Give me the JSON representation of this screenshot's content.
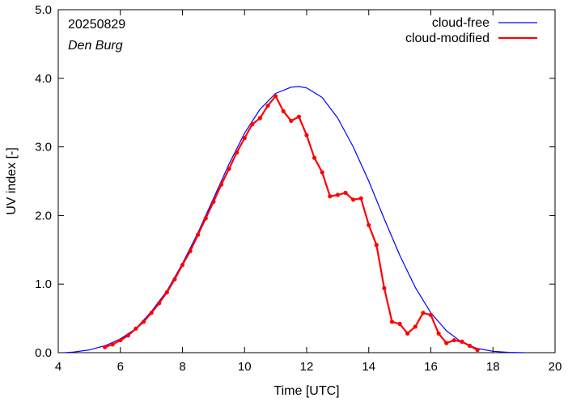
{
  "chart_data": {
    "type": "line",
    "title": "",
    "xlabel": "Time  [UTC]",
    "ylabel": "UV index  [-]",
    "xlim": [
      4,
      20
    ],
    "ylim": [
      0,
      5
    ],
    "xticks": [
      4,
      6,
      8,
      10,
      12,
      14,
      16,
      18,
      20
    ],
    "yticks": [
      0.0,
      1.0,
      2.0,
      3.0,
      4.0,
      5.0
    ],
    "xtick_labels": [
      "4",
      "6",
      "8",
      "10",
      "12",
      "14",
      "16",
      "18",
      "20"
    ],
    "ytick_labels": [
      "0.0",
      "1.0",
      "2.0",
      "3.0",
      "4.0",
      "5.0"
    ],
    "grid": false,
    "legend_position": "top-right",
    "annotations": {
      "date": "20250829",
      "station": "Den Burg"
    },
    "series": [
      {
        "name": "cloud-free",
        "color": "#0000ff",
        "style": "line",
        "x": [
          4.2,
          4.5,
          5.0,
          5.5,
          6.0,
          6.5,
          7.0,
          7.5,
          8.0,
          8.5,
          9.0,
          9.5,
          10.0,
          10.5,
          11.0,
          11.5,
          11.75,
          12.0,
          12.5,
          13.0,
          13.5,
          14.0,
          14.5,
          15.0,
          15.5,
          16.0,
          16.5,
          17.0,
          17.5,
          18.0,
          18.5,
          19.0
        ],
        "y": [
          0.0,
          0.01,
          0.04,
          0.1,
          0.2,
          0.35,
          0.6,
          0.9,
          1.3,
          1.75,
          2.25,
          2.75,
          3.2,
          3.55,
          3.78,
          3.87,
          3.88,
          3.86,
          3.72,
          3.42,
          3.0,
          2.5,
          1.95,
          1.42,
          0.95,
          0.58,
          0.32,
          0.15,
          0.06,
          0.02,
          0.005,
          0.0
        ]
      },
      {
        "name": "cloud-modified",
        "color": "#ff0000",
        "style": "line-points",
        "x": [
          5.5,
          5.75,
          6.0,
          6.25,
          6.5,
          6.75,
          7.0,
          7.25,
          7.5,
          7.75,
          8.0,
          8.25,
          8.5,
          8.75,
          9.0,
          9.25,
          9.5,
          9.75,
          10.0,
          10.25,
          10.5,
          10.75,
          11.0,
          11.25,
          11.5,
          11.75,
          12.0,
          12.25,
          12.5,
          12.75,
          13.0,
          13.25,
          13.5,
          13.75,
          14.0,
          14.25,
          14.5,
          14.75,
          15.0,
          15.25,
          15.5,
          15.75,
          16.0,
          16.25,
          16.5,
          16.75,
          17.0,
          17.25,
          17.5
        ],
        "y": [
          0.08,
          0.12,
          0.18,
          0.25,
          0.35,
          0.45,
          0.58,
          0.72,
          0.88,
          1.07,
          1.28,
          1.48,
          1.72,
          1.96,
          2.2,
          2.45,
          2.68,
          2.92,
          3.13,
          3.33,
          3.42,
          3.6,
          3.74,
          3.52,
          3.38,
          3.44,
          3.17,
          2.84,
          2.63,
          2.28,
          2.3,
          2.33,
          2.23,
          2.25,
          1.86,
          1.57,
          0.94,
          0.45,
          0.42,
          0.28,
          0.38,
          0.58,
          0.55,
          0.28,
          0.14,
          0.18,
          0.16,
          0.1,
          0.04
        ]
      }
    ]
  }
}
